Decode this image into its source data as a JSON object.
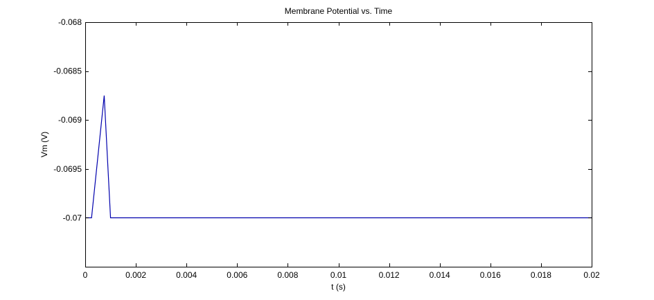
{
  "chart_data": {
    "type": "line",
    "title": "Membrane Potential vs. Time",
    "xlabel": "t (s)",
    "ylabel": "Vm (V)",
    "xlim": [
      0,
      0.02
    ],
    "ylim": [
      -0.0705,
      -0.068
    ],
    "x_ticks": [
      0,
      0.002,
      0.004,
      0.006,
      0.008,
      0.01,
      0.012,
      0.014,
      0.016,
      0.018,
      0.02
    ],
    "x_tick_labels": [
      "0",
      "0.002",
      "0.004",
      "0.006",
      "0.008",
      "0.01",
      "0.012",
      "0.014",
      "0.016",
      "0.018",
      "0.02"
    ],
    "y_ticks": [
      -0.068,
      -0.0685,
      -0.069,
      -0.0695,
      -0.07
    ],
    "y_tick_labels": [
      "-0.068",
      "-0.0685",
      "-0.069",
      "-0.0695",
      "-0.07"
    ],
    "grid": false,
    "series": [
      {
        "color": "#0000ad",
        "x": [
          0,
          0.00025,
          0.00075,
          0.001,
          0.02
        ],
        "y": [
          -0.07,
          -0.07,
          -0.06875,
          -0.07,
          -0.07
        ]
      }
    ]
  }
}
